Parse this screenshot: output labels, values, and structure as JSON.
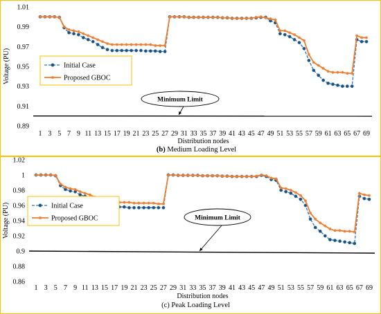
{
  "colors": {
    "initial": "#2E75B6",
    "initial_marker": "#1F4E79",
    "proposed": "#ED7D31",
    "limit": "#000000",
    "frame": "#FFC000"
  },
  "chart_data": [
    {
      "type": "line",
      "caption_letter": "(b)",
      "caption_text": " Medium Loading Level",
      "xlabel": "Distribution nodes",
      "ylabel": "Voltage (PU)",
      "ylim": [
        0.89,
        1.01
      ],
      "yticks": [
        "1.01",
        "0.99",
        "0.97",
        "0.95",
        "0.93",
        "0.91",
        "0.89"
      ],
      "ytick_values": [
        1.01,
        0.99,
        0.97,
        0.95,
        0.93,
        0.91,
        0.89
      ],
      "xticks": [
        "1",
        "3",
        "5",
        "7",
        "9",
        "11",
        "13",
        "15",
        "17",
        "19",
        "21",
        "23",
        "25",
        "27",
        "29",
        "31",
        "33",
        "35",
        "37",
        "39",
        "41",
        "43",
        "45",
        "47",
        "49",
        "51",
        "53",
        "55",
        "57",
        "59",
        "61",
        "63",
        "65",
        "67",
        "69"
      ],
      "x": [
        1,
        2,
        3,
        4,
        5,
        6,
        7,
        8,
        9,
        10,
        11,
        12,
        13,
        14,
        15,
        16,
        17,
        18,
        19,
        20,
        21,
        22,
        23,
        24,
        25,
        26,
        27,
        28,
        29,
        30,
        31,
        32,
        33,
        34,
        35,
        36,
        37,
        38,
        39,
        40,
        41,
        42,
        43,
        44,
        45,
        46,
        47,
        48,
        49,
        50,
        51,
        52,
        53,
        54,
        55,
        56,
        57,
        58,
        59,
        60,
        61,
        62,
        63,
        64,
        65,
        66,
        67,
        68,
        69
      ],
      "series": [
        {
          "name": "Initial Case",
          "values": [
            1.0,
            1.0,
            1.0,
            1.0,
            0.9995,
            0.989,
            0.984,
            0.983,
            0.982,
            0.979,
            0.977,
            0.975,
            0.972,
            0.969,
            0.967,
            0.966,
            0.966,
            0.966,
            0.966,
            0.966,
            0.966,
            0.966,
            0.9655,
            0.9655,
            0.9655,
            0.965,
            0.965,
            1.0,
            1.0,
            1.0,
            1.0,
            0.9995,
            0.9995,
            0.9995,
            0.9995,
            0.9995,
            0.9995,
            0.9995,
            0.999,
            0.999,
            0.9985,
            0.9985,
            0.9985,
            0.9985,
            0.9985,
            0.999,
            0.9995,
            0.9995,
            0.996,
            0.994,
            0.983,
            0.982,
            0.98,
            0.977,
            0.974,
            0.968,
            0.956,
            0.946,
            0.941,
            0.936,
            0.933,
            0.932,
            0.931,
            0.93,
            0.93,
            0.93,
            0.977,
            0.975,
            0.975
          ]
        },
        {
          "name": "Proposed GBOC",
          "values": [
            1.0,
            1.0,
            1.0,
            1.0,
            0.9995,
            0.99,
            0.987,
            0.986,
            0.985,
            0.983,
            0.981,
            0.979,
            0.977,
            0.975,
            0.973,
            0.972,
            0.972,
            0.972,
            0.972,
            0.972,
            0.972,
            0.972,
            0.972,
            0.972,
            0.971,
            0.971,
            0.971,
            1.0,
            1.0,
            1.0,
            1.0,
            0.9995,
            0.9995,
            0.9995,
            0.9995,
            0.9995,
            0.9995,
            0.9995,
            0.999,
            0.999,
            0.9985,
            0.9985,
            0.9985,
            0.9985,
            0.9985,
            0.9995,
            1.0,
            0.999,
            0.998,
            0.997,
            0.986,
            0.986,
            0.984,
            0.982,
            0.979,
            0.976,
            0.962,
            0.954,
            0.951,
            0.948,
            0.945,
            0.944,
            0.944,
            0.944,
            0.943,
            0.943,
            0.981,
            0.979,
            0.979
          ]
        }
      ],
      "limit_value": 0.9,
      "annotation": "Minimum Limit",
      "legend": "left"
    },
    {
      "type": "line",
      "caption_letter": "",
      "caption_text": "(c) Peak Loading Level",
      "xlabel": "Distribution nodes",
      "ylabel": "Voltage (PU)",
      "ylim": [
        0.86,
        1.02
      ],
      "yticks": [
        "1.02",
        "1",
        "0.98",
        "0.96",
        "0.94",
        "0.92",
        "0.9",
        "0.88",
        "0.86"
      ],
      "ytick_values": [
        1.02,
        1.0,
        0.98,
        0.96,
        0.94,
        0.92,
        0.9,
        0.88,
        0.86
      ],
      "xticks": [
        "1",
        "3",
        "5",
        "7",
        "9",
        "11",
        "13",
        "15",
        "17",
        "19",
        "21",
        "23",
        "25",
        "27",
        "29",
        "31",
        "33",
        "35",
        "37",
        "39",
        "41",
        "43",
        "45",
        "47",
        "49",
        "51",
        "53",
        "55",
        "57",
        "59",
        "61",
        "63",
        "65",
        "67",
        "69"
      ],
      "x": [
        1,
        2,
        3,
        4,
        5,
        6,
        7,
        8,
        9,
        10,
        11,
        12,
        13,
        14,
        15,
        16,
        17,
        18,
        19,
        20,
        21,
        22,
        23,
        24,
        25,
        26,
        27,
        28,
        29,
        30,
        31,
        32,
        33,
        34,
        35,
        36,
        37,
        38,
        39,
        40,
        41,
        42,
        43,
        44,
        45,
        46,
        47,
        48,
        49,
        50,
        51,
        52,
        53,
        54,
        55,
        56,
        57,
        58,
        59,
        60,
        61,
        62,
        63,
        64,
        65,
        66,
        67,
        68,
        69
      ],
      "series": [
        {
          "name": "Initial Case",
          "values": [
            1.0,
            1.0,
            1.0,
            1.0,
            0.999,
            0.986,
            0.981,
            0.979,
            0.978,
            0.974,
            0.972,
            0.97,
            0.966,
            0.962,
            0.96,
            0.959,
            0.958,
            0.958,
            0.958,
            0.957,
            0.957,
            0.957,
            0.957,
            0.957,
            0.957,
            0.957,
            0.957,
            1.0,
            1.0,
            0.9995,
            0.9995,
            0.9995,
            0.9995,
            0.9995,
            0.999,
            0.999,
            0.999,
            0.999,
            0.9985,
            0.9985,
            0.998,
            0.998,
            0.998,
            0.998,
            0.998,
            0.998,
            0.9995,
            0.998,
            0.994,
            0.993,
            0.98,
            0.978,
            0.976,
            0.972,
            0.968,
            0.96,
            0.942,
            0.931,
            0.926,
            0.92,
            0.915,
            0.914,
            0.913,
            0.912,
            0.911,
            0.91,
            0.972,
            0.969,
            0.968
          ]
        },
        {
          "name": "Proposed GBOC",
          "values": [
            1.0,
            1.0,
            1.0,
            1.0,
            0.9995,
            0.988,
            0.984,
            0.982,
            0.981,
            0.978,
            0.976,
            0.974,
            0.971,
            0.968,
            0.966,
            0.965,
            0.964,
            0.964,
            0.964,
            0.964,
            0.963,
            0.963,
            0.963,
            0.963,
            0.963,
            0.962,
            0.962,
            1.0,
            1.0,
            0.9995,
            0.9995,
            0.9995,
            0.9995,
            0.9995,
            0.999,
            0.999,
            0.999,
            0.999,
            0.9985,
            0.9985,
            0.998,
            0.998,
            0.998,
            0.998,
            0.998,
            0.9985,
            1.0,
            0.999,
            0.996,
            0.995,
            0.983,
            0.982,
            0.98,
            0.977,
            0.973,
            0.966,
            0.95,
            0.942,
            0.937,
            0.933,
            0.929,
            0.927,
            0.927,
            0.926,
            0.926,
            0.925,
            0.976,
            0.974,
            0.973
          ]
        }
      ],
      "limit_value": 0.9,
      "annotation": "Minimum Limit",
      "legend": "left"
    }
  ]
}
